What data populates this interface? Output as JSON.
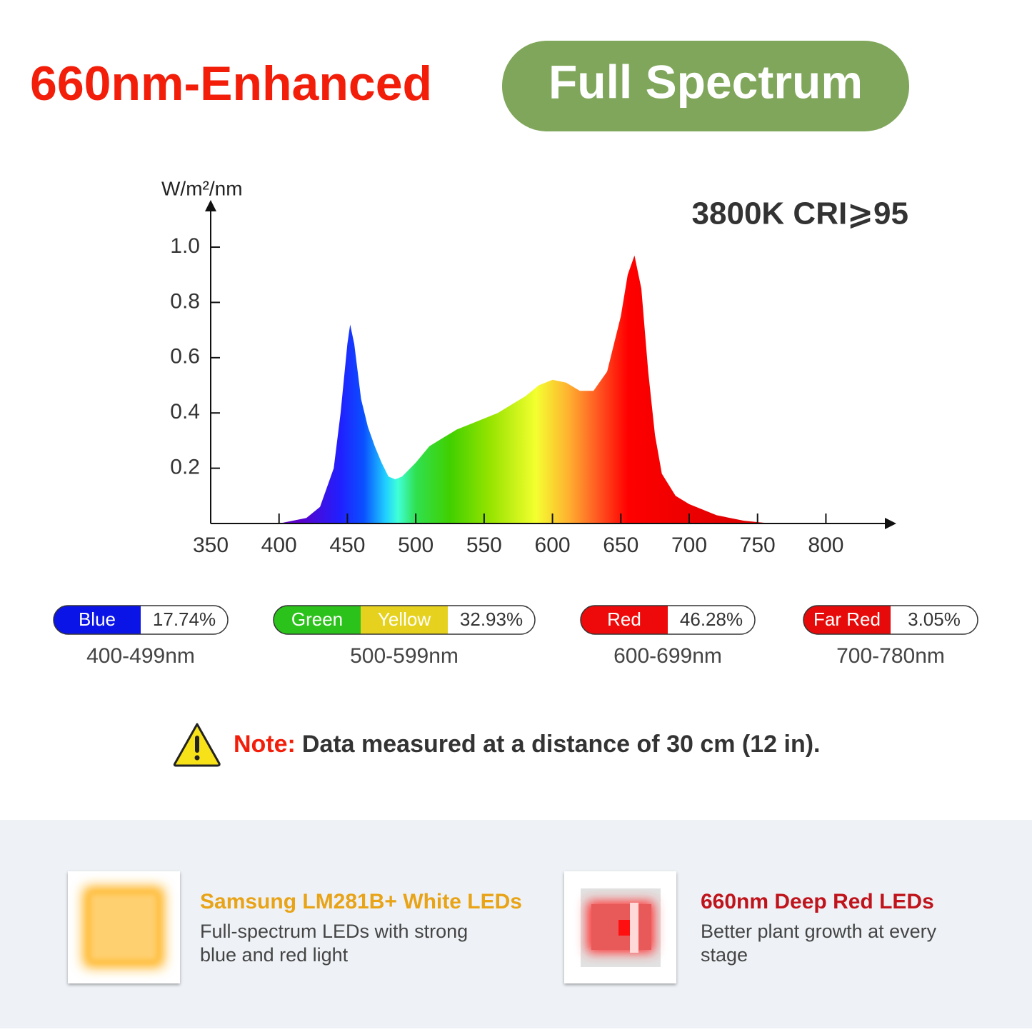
{
  "header": {
    "title": "660nm-Enhanced",
    "badge": "Full Spectrum"
  },
  "chart_data": {
    "type": "area",
    "y_label": "W/m²/nm",
    "annotation": "3800K CRI⩾95",
    "x": [
      400,
      420,
      430,
      440,
      445,
      450,
      452,
      455,
      460,
      465,
      470,
      475,
      480,
      485,
      490,
      500,
      510,
      520,
      530,
      540,
      550,
      560,
      570,
      580,
      590,
      600,
      610,
      620,
      630,
      640,
      650,
      655,
      660,
      665,
      670,
      675,
      680,
      690,
      700,
      720,
      740,
      760
    ],
    "values": [
      0,
      0.02,
      0.06,
      0.2,
      0.4,
      0.65,
      0.72,
      0.65,
      0.45,
      0.35,
      0.28,
      0.22,
      0.17,
      0.16,
      0.17,
      0.22,
      0.28,
      0.31,
      0.34,
      0.36,
      0.38,
      0.4,
      0.43,
      0.46,
      0.5,
      0.52,
      0.51,
      0.48,
      0.48,
      0.55,
      0.75,
      0.9,
      0.97,
      0.85,
      0.55,
      0.32,
      0.18,
      0.1,
      0.07,
      0.03,
      0.01,
      0
    ],
    "xlim": [
      350,
      840
    ],
    "ylim": [
      0,
      1.15
    ],
    "xticks": [
      350,
      400,
      450,
      500,
      550,
      600,
      650,
      700,
      750,
      800
    ],
    "yticks": [
      0.2,
      0.4,
      0.6,
      0.8,
      {
        "value": 1,
        "label": "1.0"
      }
    ],
    "fill_stops": [
      {
        "at": 415,
        "color": "#5a00c8"
      },
      {
        "at": 445,
        "color": "#2020ff"
      },
      {
        "at": 462,
        "color": "#0a50ff"
      },
      {
        "at": 478,
        "color": "#20d0ff"
      },
      {
        "at": 487,
        "color": "#40ffd8"
      },
      {
        "at": 500,
        "color": "#30e050"
      },
      {
        "at": 525,
        "color": "#40d000"
      },
      {
        "at": 555,
        "color": "#98e400"
      },
      {
        "at": 588,
        "color": "#f4ff30"
      },
      {
        "at": 612,
        "color": "#ffb030"
      },
      {
        "at": 635,
        "color": "#ff5020"
      },
      {
        "at": 655,
        "color": "#ff0000"
      },
      {
        "at": 730,
        "color": "#e00000"
      }
    ]
  },
  "bands": [
    {
      "names": [
        "Blue"
      ],
      "colors": [
        "#0a14e6"
      ],
      "share": "17.74%",
      "range": "400-499nm"
    },
    {
      "names": [
        "Green",
        "Yellow"
      ],
      "colors": [
        "#2cc21c",
        "#e6d21e"
      ],
      "share": "32.93%",
      "range": "500-599nm"
    },
    {
      "names": [
        "Red"
      ],
      "colors": [
        "#ee0a0a"
      ],
      "share": "46.28%",
      "range": "600-699nm"
    },
    {
      "names": [
        "Far Red"
      ],
      "colors": [
        "#e60a0a"
      ],
      "share": "3.05%",
      "range": "700-780nm"
    }
  ],
  "note": {
    "label": "Note:",
    "text": "Data measured at a distance of 30 cm (12 in)."
  },
  "features": [
    {
      "title": "Samsung LM281B+ White LEDs",
      "lines": [
        "Full-spectrum LEDs with strong",
        "blue and red light"
      ]
    },
    {
      "title": "660nm Deep Red LEDs",
      "lines": [
        "Better plant growth at every",
        "stage"
      ]
    }
  ]
}
